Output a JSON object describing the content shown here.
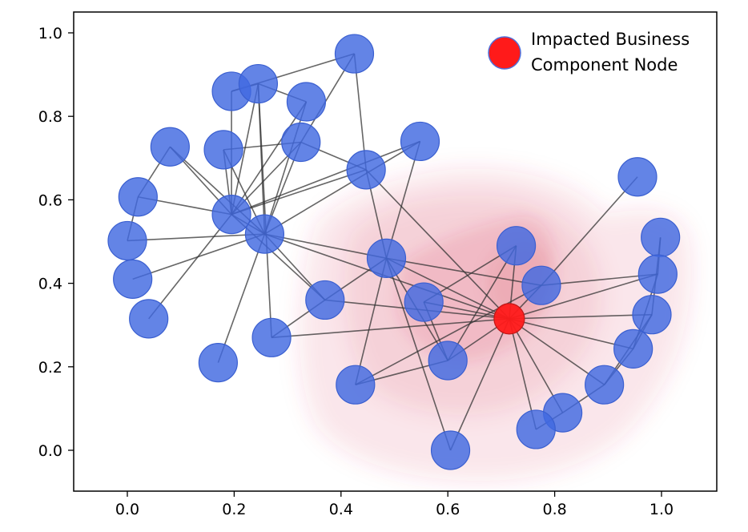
{
  "chart_data": {
    "type": "scatter",
    "subtype": "network-graph",
    "title": "",
    "xlabel": "",
    "ylabel": "",
    "xlim": [
      -0.1,
      1.1
    ],
    "ylim": [
      -0.1,
      1.05
    ],
    "xticks": [
      0.0,
      0.2,
      0.4,
      0.6,
      0.8,
      1.0
    ],
    "yticks": [
      0.0,
      0.2,
      0.4,
      0.6,
      0.8,
      1.0
    ],
    "xtick_labels": [
      "0.0",
      "0.2",
      "0.4",
      "0.6",
      "0.8",
      "1.0"
    ],
    "ytick_labels": [
      "0.0",
      "0.2",
      "0.4",
      "0.6",
      "0.8",
      "1.0"
    ],
    "grid": false,
    "legend": {
      "position": "top-right",
      "entries": [
        {
          "label": "Impacted Business Component Node",
          "line1": "Impacted Business",
          "line2": "Component Node",
          "color": "#ff1a1a"
        }
      ]
    },
    "colors": {
      "node": "#4169e1",
      "impacted_node": "#ff1a1a",
      "edge": "#333333",
      "impact_zone": "#d23a50"
    },
    "impacted_node": "n36",
    "nodes": [
      {
        "id": "n1",
        "x": 0.425,
        "y": 0.95
      },
      {
        "id": "n2",
        "x": 0.195,
        "y": 0.86
      },
      {
        "id": "n3",
        "x": 0.245,
        "y": 0.878
      },
      {
        "id": "n4",
        "x": 0.335,
        "y": 0.835
      },
      {
        "id": "n5",
        "x": 0.08,
        "y": 0.727
      },
      {
        "id": "n6",
        "x": 0.18,
        "y": 0.72
      },
      {
        "id": "n7",
        "x": 0.325,
        "y": 0.738
      },
      {
        "id": "n8",
        "x": 0.548,
        "y": 0.74
      },
      {
        "id": "n9",
        "x": 0.447,
        "y": 0.672
      },
      {
        "id": "n10",
        "x": 0.955,
        "y": 0.655
      },
      {
        "id": "n11",
        "x": 0.02,
        "y": 0.607
      },
      {
        "id": "n12",
        "x": 0.195,
        "y": 0.565
      },
      {
        "id": "n13",
        "x": 0.257,
        "y": 0.518
      },
      {
        "id": "n14",
        "x": 0.0,
        "y": 0.502
      },
      {
        "id": "n15",
        "x": 0.485,
        "y": 0.46
      },
      {
        "id": "n16",
        "x": 0.728,
        "y": 0.49
      },
      {
        "id": "n17",
        "x": 0.998,
        "y": 0.51
      },
      {
        "id": "n18",
        "x": 0.01,
        "y": 0.41
      },
      {
        "id": "n19",
        "x": 0.775,
        "y": 0.395
      },
      {
        "id": "n20",
        "x": 0.993,
        "y": 0.422
      },
      {
        "id": "n21",
        "x": 0.555,
        "y": 0.355
      },
      {
        "id": "n22",
        "x": 0.37,
        "y": 0.36
      },
      {
        "id": "n23",
        "x": 0.04,
        "y": 0.315
      },
      {
        "id": "n24",
        "x": 0.982,
        "y": 0.325
      },
      {
        "id": "n25",
        "x": 0.27,
        "y": 0.27
      },
      {
        "id": "n26",
        "x": 0.947,
        "y": 0.243
      },
      {
        "id": "n27",
        "x": 0.6,
        "y": 0.215
      },
      {
        "id": "n28",
        "x": 0.17,
        "y": 0.21
      },
      {
        "id": "n29",
        "x": 0.427,
        "y": 0.157
      },
      {
        "id": "n30",
        "x": 0.893,
        "y": 0.157
      },
      {
        "id": "n31",
        "x": 0.815,
        "y": 0.09
      },
      {
        "id": "n32",
        "x": 0.765,
        "y": 0.05
      },
      {
        "id": "n33",
        "x": 0.605,
        "y": 0.0
      },
      {
        "id": "n36",
        "x": 0.715,
        "y": 0.315
      }
    ],
    "edges": [
      [
        "n1",
        "n2"
      ],
      [
        "n1",
        "n9"
      ],
      [
        "n1",
        "n7"
      ],
      [
        "n2",
        "n12"
      ],
      [
        "n2",
        "n3"
      ],
      [
        "n3",
        "n13"
      ],
      [
        "n3",
        "n12"
      ],
      [
        "n3",
        "n25"
      ],
      [
        "n3",
        "n4"
      ],
      [
        "n4",
        "n12"
      ],
      [
        "n4",
        "n13"
      ],
      [
        "n5",
        "n12"
      ],
      [
        "n5",
        "n13"
      ],
      [
        "n5",
        "n11"
      ],
      [
        "n6",
        "n7"
      ],
      [
        "n6",
        "n12"
      ],
      [
        "n6",
        "n13"
      ],
      [
        "n7",
        "n9"
      ],
      [
        "n7",
        "n12"
      ],
      [
        "n7",
        "n13"
      ],
      [
        "n8",
        "n12"
      ],
      [
        "n8",
        "n13"
      ],
      [
        "n8",
        "n15"
      ],
      [
        "n9",
        "n12"
      ],
      [
        "n9",
        "n15"
      ],
      [
        "n9",
        "n36"
      ],
      [
        "n10",
        "n19"
      ],
      [
        "n11",
        "n14"
      ],
      [
        "n11",
        "n12"
      ],
      [
        "n12",
        "n13"
      ],
      [
        "n12",
        "n22"
      ],
      [
        "n12",
        "n23"
      ],
      [
        "n13",
        "n14"
      ],
      [
        "n13",
        "n18"
      ],
      [
        "n13",
        "n28"
      ],
      [
        "n13",
        "n15"
      ],
      [
        "n13",
        "n22"
      ],
      [
        "n13",
        "n36"
      ],
      [
        "n15",
        "n27"
      ],
      [
        "n15",
        "n33"
      ],
      [
        "n15",
        "n36"
      ],
      [
        "n15",
        "n22"
      ],
      [
        "n15",
        "n29"
      ],
      [
        "n15",
        "n19"
      ],
      [
        "n16",
        "n36"
      ],
      [
        "n16",
        "n27"
      ],
      [
        "n16",
        "n21"
      ],
      [
        "n17",
        "n24"
      ],
      [
        "n17",
        "n20"
      ],
      [
        "n19",
        "n36"
      ],
      [
        "n19",
        "n20"
      ],
      [
        "n19",
        "n29"
      ],
      [
        "n20",
        "n26"
      ],
      [
        "n20",
        "n36"
      ],
      [
        "n21",
        "n36"
      ],
      [
        "n21",
        "n27"
      ],
      [
        "n22",
        "n36"
      ],
      [
        "n22",
        "n25"
      ],
      [
        "n24",
        "n36"
      ],
      [
        "n24",
        "n26"
      ],
      [
        "n24",
        "n30"
      ],
      [
        "n25",
        "n36"
      ],
      [
        "n26",
        "n30"
      ],
      [
        "n26",
        "n36"
      ],
      [
        "n27",
        "n36"
      ],
      [
        "n27",
        "n29"
      ],
      [
        "n30",
        "n31"
      ],
      [
        "n30",
        "n36"
      ],
      [
        "n31",
        "n32"
      ],
      [
        "n31",
        "n36"
      ],
      [
        "n32",
        "n36"
      ],
      [
        "n33",
        "n36"
      ]
    ]
  }
}
